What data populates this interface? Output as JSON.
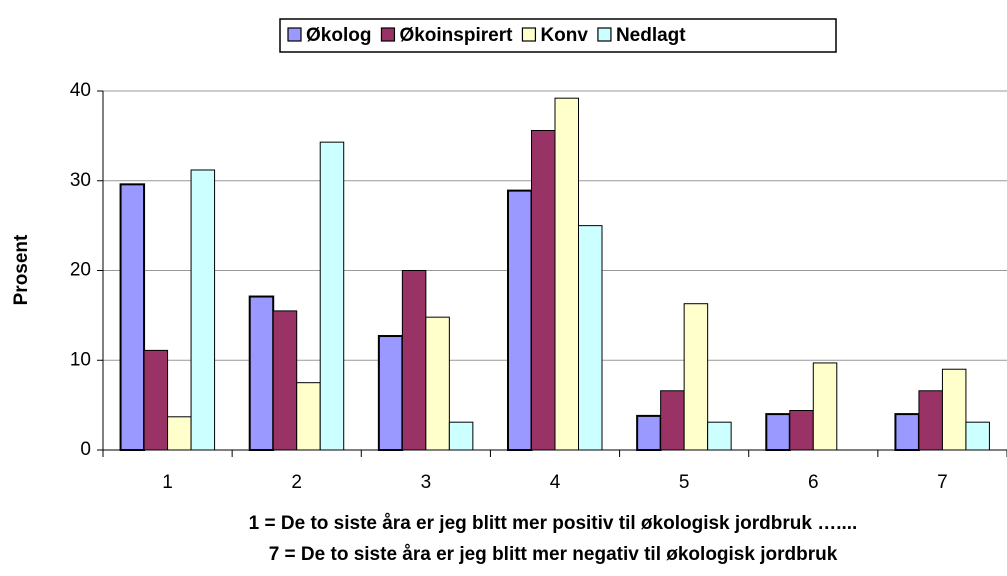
{
  "chart_data": {
    "type": "bar",
    "categories": [
      "1",
      "2",
      "3",
      "4",
      "5",
      "6",
      "7"
    ],
    "series": [
      {
        "name": "Økolog",
        "color": "#9999ff",
        "values": [
          29.6,
          17.1,
          12.7,
          28.9,
          3.8,
          4.0,
          4.0
        ]
      },
      {
        "name": "Økoinspirert",
        "color": "#993366",
        "values": [
          11.1,
          15.5,
          20.0,
          35.6,
          6.6,
          4.4,
          6.6
        ]
      },
      {
        "name": "Konv",
        "color": "#ffffcc",
        "values": [
          3.7,
          7.5,
          14.8,
          39.2,
          16.3,
          9.7,
          9.0
        ]
      },
      {
        "name": "Nedlagt",
        "color": "#ccffff",
        "values": [
          31.2,
          34.3,
          3.1,
          25.0,
          3.1,
          0,
          3.1
        ]
      }
    ],
    "ylabel": "Prosent",
    "xlabel": [
      "1 = De to siste åra er jeg blitt mer positiv til økologisk jordbruk …....",
      "7 = De to siste åra er jeg blitt mer negativ til økologisk jordbruk"
    ],
    "ylim": [
      0,
      40
    ],
    "yticks": [
      0,
      10,
      20,
      30,
      40
    ],
    "grid": true,
    "legend": "top"
  }
}
